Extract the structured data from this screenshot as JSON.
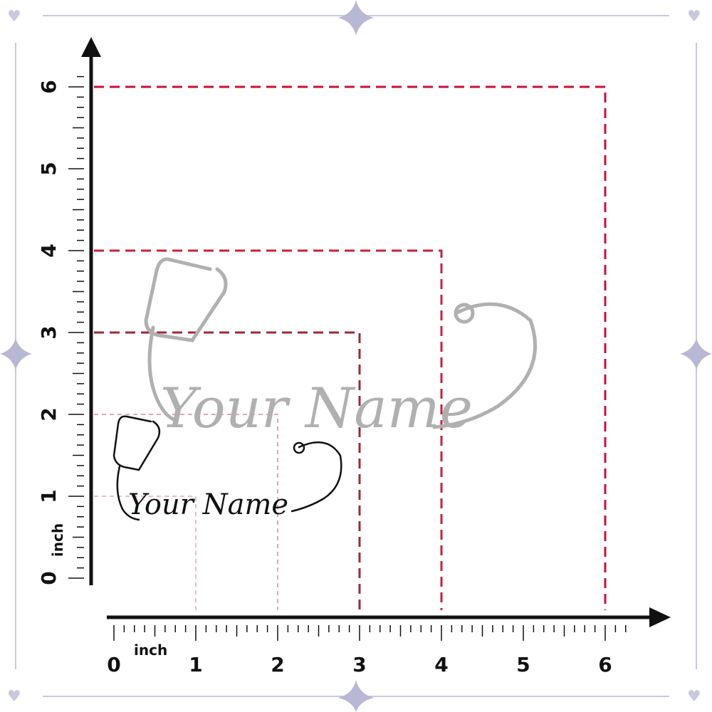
{
  "x_axis": {
    "unit": "inch",
    "ticks": [
      "0",
      "1",
      "2",
      "3",
      "4",
      "5",
      "6"
    ]
  },
  "y_axis": {
    "unit": "inch",
    "ticks": [
      "0",
      "1",
      "2",
      "3",
      "4",
      "5",
      "6"
    ]
  },
  "size_squares": [
    {
      "inches": 1,
      "color": "#e0a8b4"
    },
    {
      "inches": 2,
      "color": "#d8899c"
    },
    {
      "inches": 3,
      "color": "#9b2a3a"
    },
    {
      "inches": 4,
      "color": "#c8203f"
    },
    {
      "inches": 6,
      "color": "#c8103c"
    }
  ],
  "stickers": [
    {
      "text": "Your Name",
      "size": "large",
      "color": "#b0b0b0"
    },
    {
      "text": "Your Name",
      "size": "small",
      "color": "#111111"
    }
  ],
  "frame_color": "#c9c9dd"
}
